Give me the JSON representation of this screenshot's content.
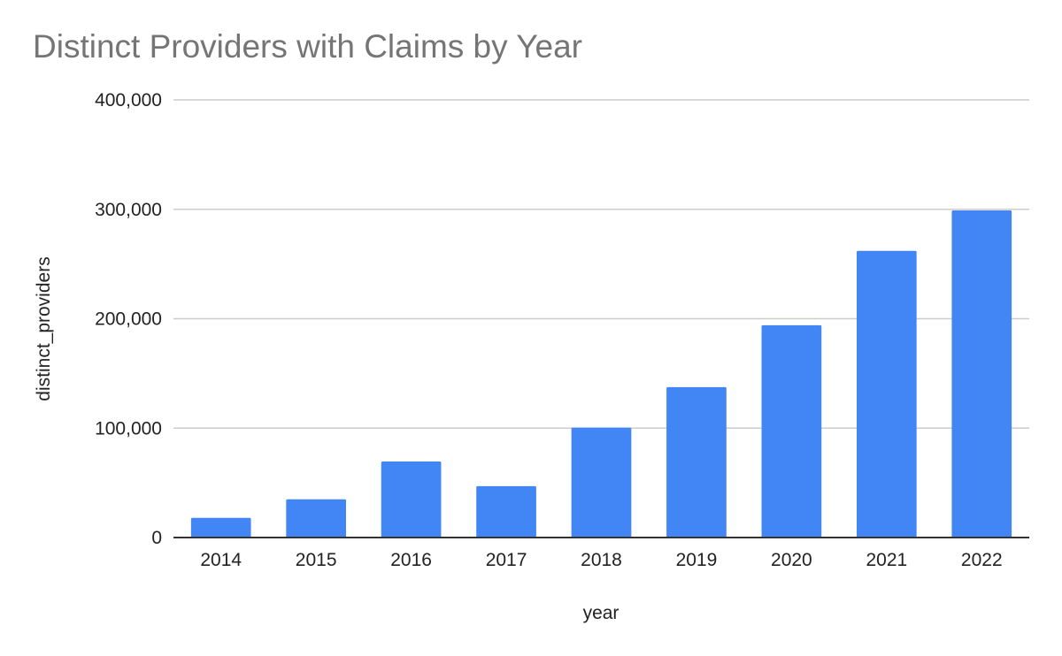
{
  "chart_data": {
    "type": "bar",
    "title": "Distinct Providers with Claims by Year",
    "xlabel": "year",
    "ylabel": "distinct_providers",
    "categories": [
      "2014",
      "2015",
      "2016",
      "2017",
      "2018",
      "2019",
      "2020",
      "2021",
      "2022"
    ],
    "series": [
      {
        "values": [
          18000,
          35000,
          69500,
          47000,
          100500,
          137500,
          194000,
          262000,
          299000
        ],
        "color": "#4285f4"
      }
    ],
    "ylim": [
      0,
      400000
    ],
    "yticks": [
      0,
      100000,
      200000,
      300000,
      400000
    ],
    "ytick_labels": [
      "0",
      "100,000",
      "200,000",
      "300,000",
      "400,000"
    ],
    "grid": true,
    "legend": "none"
  },
  "colors": {
    "bar": "#4285f4",
    "title": "#757575",
    "gridline": "#cccccc",
    "axis": "#333333",
    "text": "#222222"
  }
}
